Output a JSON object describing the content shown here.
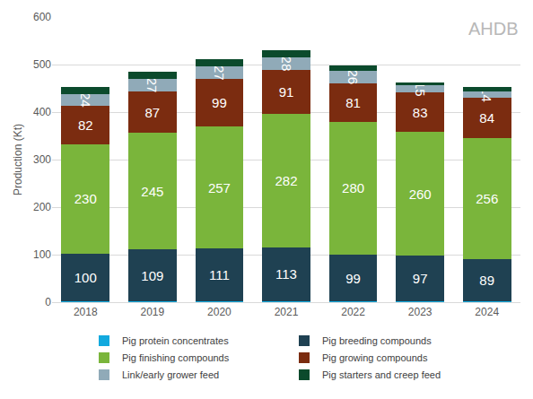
{
  "chart_data": {
    "type": "bar",
    "stacked": true,
    "y_label": "Production (Kt)",
    "annotations": [
      {
        "text": "AHDB"
      }
    ],
    "categories": [
      "2018",
      "2019",
      "2020",
      "2021",
      "2022",
      "2023",
      "2024"
    ],
    "series": [
      {
        "name": "Pig protein concentrates",
        "color": "#12A9DE",
        "data_labels": false,
        "values": [
          2,
          2,
          2,
          2,
          1,
          1,
          1
        ]
      },
      {
        "name": "Pig breeding compounds",
        "color": "#1F4152",
        "data_labels": true,
        "values": [
          100,
          109,
          111,
          113,
          99,
          97,
          89
        ]
      },
      {
        "name": "Pig finishing compounds",
        "color": "#7AB53B",
        "data_labels": true,
        "values": [
          230,
          245,
          257,
          282,
          280,
          260,
          256
        ]
      },
      {
        "name": "Pig growing compounds",
        "color": "#7B2C10",
        "data_labels": true,
        "values": [
          82,
          87,
          99,
          91,
          81,
          83,
          84
        ]
      },
      {
        "name": "Link/early grower feed",
        "color": "#90AAB8",
        "data_labels": true,
        "values": [
          24,
          27,
          27,
          28,
          26,
          15,
          14
        ]
      },
      {
        "name": "Pig starters and creep feed",
        "color": "#0B4A2C",
        "data_labels": false,
        "values": [
          15,
          15,
          16,
          14,
          12,
          6,
          8
        ]
      }
    ],
    "ylim": [
      0,
      600
    ],
    "yticks": [
      0,
      100,
      200,
      300,
      400,
      500,
      600
    ],
    "grid": true,
    "legend": "bottom"
  }
}
